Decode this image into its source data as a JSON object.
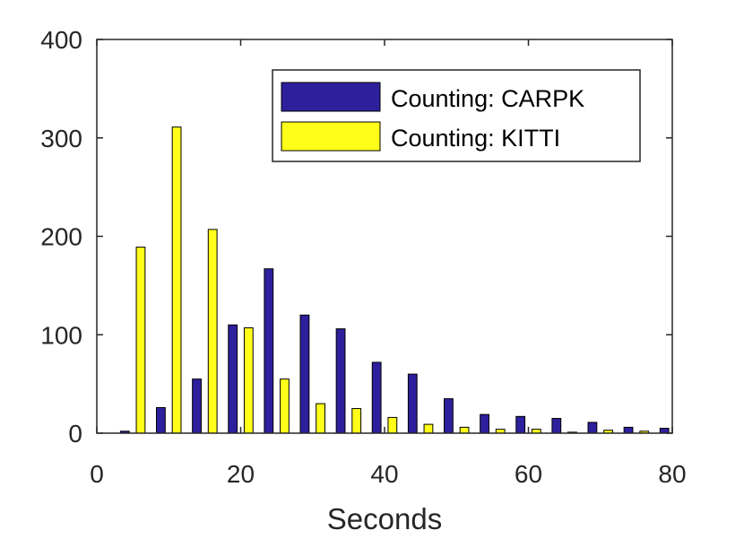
{
  "chart_data": {
    "type": "bar",
    "title": "",
    "xlabel": "Seconds",
    "ylabel": "",
    "xlim": [
      0,
      80
    ],
    "ylim": [
      0,
      400
    ],
    "xticks": [
      "0",
      "20",
      "40",
      "60",
      "80"
    ],
    "yticks": [
      "0",
      "100",
      "200",
      "300",
      "400"
    ],
    "grid": false,
    "legend_position": "top-right",
    "categories": [
      5,
      10,
      15,
      20,
      25,
      30,
      35,
      40,
      45,
      50,
      55,
      60,
      65,
      70,
      75,
      80
    ],
    "series": [
      {
        "name": "Counting: CARPK",
        "color": "#2e1f9c",
        "values": [
          2,
          26,
          55,
          110,
          167,
          120,
          106,
          72,
          60,
          35,
          19,
          17,
          15,
          11,
          6,
          5
        ]
      },
      {
        "name": "Counting: KITTI",
        "color": "#ffff1a",
        "values": [
          189,
          311,
          207,
          107,
          55,
          30,
          25,
          16,
          9,
          6,
          4,
          4,
          1,
          3,
          2,
          0
        ]
      }
    ]
  }
}
